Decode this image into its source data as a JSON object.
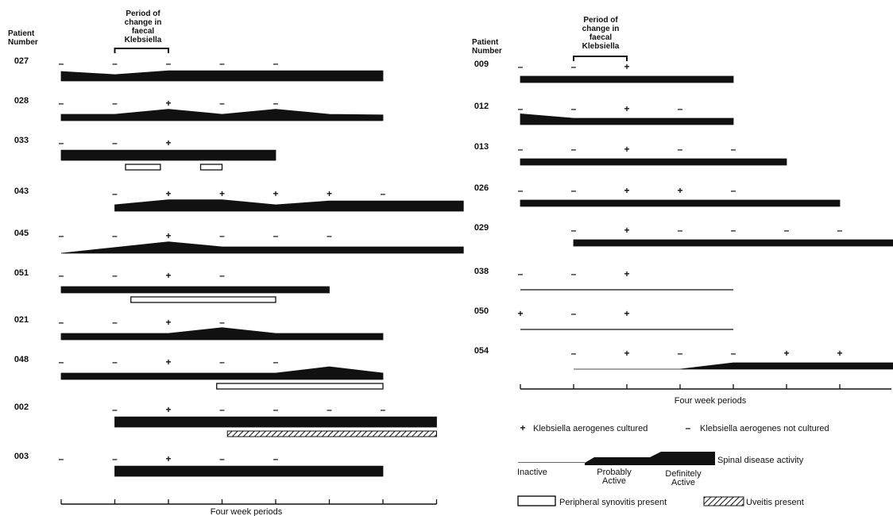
{
  "chart_data": [
    {
      "type": "timeline",
      "header_patient": [
        "Patient",
        "Number"
      ],
      "header_period": [
        "Period of",
        "change in",
        "faecal",
        "Klebsiella"
      ],
      "period_bracket": [
        1,
        2
      ],
      "xlabel": "Four week periods",
      "xlim": [
        0,
        7
      ],
      "activity_scale": {
        "0": "Inactive",
        "1": "Probably Active",
        "2": "Definitely Active"
      },
      "patients": [
        {
          "id": "027",
          "cultures": [
            [
              0,
              "–"
            ],
            [
              1,
              "–"
            ],
            [
              2,
              "–"
            ],
            [
              3,
              "–"
            ],
            [
              4,
              "–"
            ]
          ],
          "activity": [
            [
              0,
              1.5
            ],
            [
              1,
              1
            ],
            [
              2,
              1.6
            ],
            [
              6,
              1.6
            ]
          ],
          "synovitis": [],
          "uveitis": []
        },
        {
          "id": "028",
          "cultures": [
            [
              0,
              "–"
            ],
            [
              1,
              "–"
            ],
            [
              2,
              "+"
            ],
            [
              3,
              "–"
            ],
            [
              4,
              "–"
            ]
          ],
          "activity": [
            [
              0,
              1
            ],
            [
              1,
              1
            ],
            [
              2,
              1.8
            ],
            [
              3,
              1
            ],
            [
              4,
              1.8
            ],
            [
              5,
              1
            ],
            [
              6,
              0.9
            ]
          ],
          "synovitis": [],
          "uveitis": []
        },
        {
          "id": "033",
          "cultures": [
            [
              0,
              "–"
            ],
            [
              1,
              "–"
            ],
            [
              2,
              "+"
            ]
          ],
          "activity": [
            [
              0,
              1.6
            ],
            [
              4,
              1.6
            ]
          ],
          "synovitis": [
            [
              1.2,
              1.85
            ],
            [
              2.6,
              3
            ]
          ],
          "uveitis": []
        },
        {
          "id": "043",
          "cultures": [
            [
              1,
              "–"
            ],
            [
              2,
              "+"
            ],
            [
              3,
              "+"
            ],
            [
              4,
              "+"
            ],
            [
              5,
              "+"
            ],
            [
              6,
              "–"
            ]
          ],
          "activity": [
            [
              1,
              1
            ],
            [
              2,
              1.8
            ],
            [
              3,
              1.8
            ],
            [
              4,
              1
            ],
            [
              5,
              1.6
            ],
            [
              7.5,
              1.6
            ]
          ],
          "synovitis": [],
          "uveitis": []
        },
        {
          "id": "045",
          "cultures": [
            [
              0,
              "–"
            ],
            [
              1,
              "–"
            ],
            [
              2,
              "+"
            ],
            [
              3,
              "–"
            ],
            [
              4,
              "–"
            ],
            [
              5,
              "–"
            ]
          ],
          "activity": [
            [
              0,
              0
            ],
            [
              2,
              1.8
            ],
            [
              3,
              1
            ],
            [
              7.5,
              1
            ]
          ],
          "synovitis": [],
          "uveitis": []
        },
        {
          "id": "051",
          "cultures": [
            [
              0,
              "–"
            ],
            [
              1,
              "–"
            ],
            [
              2,
              "+"
            ],
            [
              3,
              "–"
            ]
          ],
          "activity": [
            [
              0,
              1
            ],
            [
              5,
              1
            ]
          ],
          "synovitis": [
            [
              1.3,
              4
            ]
          ],
          "uveitis": []
        },
        {
          "id": "021",
          "cultures": [
            [
              0,
              "–"
            ],
            [
              1,
              "–"
            ],
            [
              2,
              "+"
            ],
            [
              3,
              "–"
            ]
          ],
          "activity": [
            [
              0,
              1
            ],
            [
              2,
              1
            ],
            [
              3,
              1.9
            ],
            [
              4,
              1
            ],
            [
              6,
              1
            ]
          ],
          "synovitis": [],
          "uveitis": []
        },
        {
          "id": "048",
          "cultures": [
            [
              0,
              "–"
            ],
            [
              1,
              "–"
            ],
            [
              2,
              "+"
            ],
            [
              3,
              "–"
            ],
            [
              4,
              "–"
            ]
          ],
          "activity": [
            [
              0,
              1
            ],
            [
              4,
              1
            ],
            [
              5,
              2
            ],
            [
              6,
              1
            ]
          ],
          "synovitis": [
            [
              2.9,
              6
            ]
          ],
          "uveitis": []
        },
        {
          "id": "002",
          "cultures": [
            [
              1,
              "–"
            ],
            [
              2,
              "+"
            ],
            [
              3,
              "–"
            ],
            [
              4,
              "–"
            ],
            [
              5,
              "–"
            ],
            [
              6,
              "–"
            ]
          ],
          "activity": [
            [
              1,
              1.6
            ],
            [
              7,
              1.6
            ]
          ],
          "synovitis": [],
          "uveitis": [
            [
              3.1,
              7
            ]
          ]
        },
        {
          "id": "003",
          "cultures": [
            [
              0,
              "–"
            ],
            [
              1,
              "–"
            ],
            [
              2,
              "+"
            ],
            [
              3,
              "–"
            ],
            [
              4,
              "–"
            ]
          ],
          "activity": [
            [
              1,
              1.6
            ],
            [
              6,
              1.6
            ]
          ],
          "synovitis": [],
          "uveitis": []
        }
      ]
    },
    {
      "type": "timeline",
      "header_patient": [
        "Patient",
        "Number"
      ],
      "header_period": [
        "Period of",
        "change in",
        "faecal",
        "Klebsiella"
      ],
      "period_bracket": [
        1,
        2
      ],
      "xlabel": "Four week periods",
      "xlim": [
        0,
        7
      ],
      "activity_scale": {
        "0": "Inactive",
        "1": "Probably Active",
        "2": "Definitely Active"
      },
      "patients": [
        {
          "id": "009",
          "cultures": [
            [
              0,
              "–"
            ],
            [
              1,
              "–"
            ],
            [
              2,
              "+"
            ]
          ],
          "activity": [
            [
              0,
              1
            ],
            [
              4,
              1
            ]
          ],
          "synovitis": [],
          "uveitis": []
        },
        {
          "id": "012",
          "cultures": [
            [
              0,
              "–"
            ],
            [
              1,
              "–"
            ],
            [
              2,
              "+"
            ],
            [
              3,
              "–"
            ]
          ],
          "activity": [
            [
              0,
              1.7
            ],
            [
              1,
              1
            ],
            [
              4,
              1
            ]
          ],
          "synovitis": [],
          "uveitis": []
        },
        {
          "id": "013",
          "cultures": [
            [
              0,
              "–"
            ],
            [
              1,
              "–"
            ],
            [
              2,
              "+"
            ],
            [
              3,
              "–"
            ],
            [
              4,
              "–"
            ]
          ],
          "activity": [
            [
              0,
              1
            ],
            [
              5,
              1
            ]
          ],
          "synovitis": [],
          "uveitis": []
        },
        {
          "id": "026",
          "cultures": [
            [
              0,
              "–"
            ],
            [
              1,
              "–"
            ],
            [
              2,
              "+"
            ],
            [
              3,
              "+"
            ],
            [
              4,
              "–"
            ]
          ],
          "activity": [
            [
              0,
              1
            ],
            [
              6,
              1
            ]
          ],
          "synovitis": [],
          "uveitis": []
        },
        {
          "id": "029",
          "cultures": [
            [
              1,
              "–"
            ],
            [
              2,
              "+"
            ],
            [
              3,
              "–"
            ],
            [
              4,
              "–"
            ],
            [
              5,
              "–"
            ],
            [
              6,
              "–"
            ]
          ],
          "activity": [
            [
              1,
              1
            ],
            [
              7.05,
              1
            ]
          ],
          "synovitis": [],
          "uveitis": []
        },
        {
          "id": "038",
          "cultures": [
            [
              0,
              "–"
            ],
            [
              1,
              "–"
            ],
            [
              2,
              "+"
            ]
          ],
          "activity": [
            [
              0,
              0
            ],
            [
              4,
              0
            ]
          ],
          "synovitis": [],
          "uveitis": []
        },
        {
          "id": "050",
          "cultures": [
            [
              0,
              "+"
            ],
            [
              1,
              "–"
            ],
            [
              2,
              "+"
            ]
          ],
          "activity": [
            [
              0,
              0
            ],
            [
              4,
              0
            ]
          ],
          "synovitis": [],
          "uveitis": []
        },
        {
          "id": "054",
          "cultures": [
            [
              1,
              "–"
            ],
            [
              2,
              "+"
            ],
            [
              3,
              "–"
            ],
            [
              4,
              "–"
            ],
            [
              5,
              "+"
            ],
            [
              6,
              "+"
            ]
          ],
          "activity": [
            [
              1,
              0
            ],
            [
              3,
              0
            ],
            [
              4,
              1
            ],
            [
              7.05,
              1
            ]
          ],
          "synovitis": [],
          "uveitis": []
        }
      ]
    }
  ],
  "legend": {
    "plus_symbol": "+",
    "plus_text": "Klebsiella aerogenes cultured",
    "minus_symbol": "–",
    "minus_text": "Klebsiella aerogenes not cultured",
    "activity_text": "Spinal disease activity",
    "inactive": "Inactive",
    "probably": [
      "Probably",
      "Active"
    ],
    "definitely": [
      "Definitely",
      "Active"
    ],
    "synovitis_text": "Peripheral synovitis present",
    "uveitis_text": "Uveitis present"
  }
}
